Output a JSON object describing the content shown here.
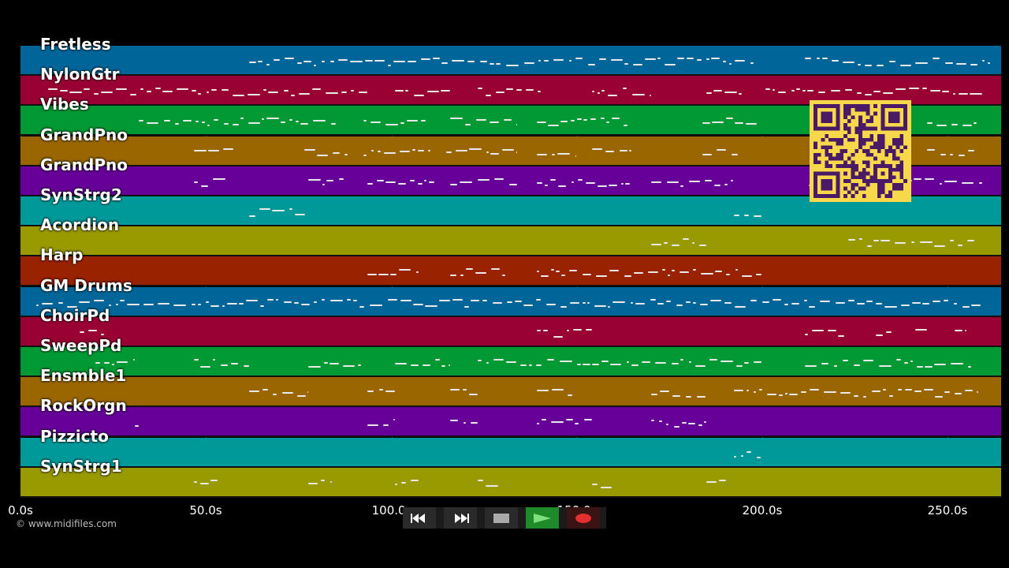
{
  "tracks": [
    {
      "name": "Fretless",
      "color": "#006699"
    },
    {
      "name": "NylonGtr",
      "color": "#990033"
    },
    {
      "name": "Vibes",
      "color": "#009933"
    },
    {
      "name": "GrandPno",
      "color": "#996600"
    },
    {
      "name": "GrandPno",
      "color": "#660099"
    },
    {
      "name": "SynStrg2",
      "color": "#009999"
    },
    {
      "name": "Acordion",
      "color": "#999900"
    },
    {
      "name": "Harp",
      "color": "#992200"
    },
    {
      "name": "GM Drums",
      "color": "#006699"
    },
    {
      "name": "ChoirPd",
      "color": "#990033"
    },
    {
      "name": "SweepPd",
      "color": "#009933"
    },
    {
      "name": "Ensmble1",
      "color": "#996600"
    },
    {
      "name": "RockOrgn",
      "color": "#660099"
    },
    {
      "name": "Pizzicto",
      "color": "#009999"
    },
    {
      "name": "SynStrg1",
      "color": "#999900"
    }
  ],
  "time_axis": {
    "ticks": [
      "0.0s",
      "50.0s",
      "100.0s",
      "150.0s",
      "200.0s",
      "250.0s"
    ],
    "tick_values": [
      0,
      50,
      100,
      150,
      200,
      250
    ],
    "max_seconds": 264.5
  },
  "copyright": "© www.midifiles.com",
  "transport": {
    "rewind_icon": "rewind-icon",
    "forward_icon": "fast-forward-icon",
    "stop_icon": "stop-icon",
    "play_icon": "play-icon",
    "record_icon": "record-icon"
  },
  "qr_code": "qr-code-icon"
}
